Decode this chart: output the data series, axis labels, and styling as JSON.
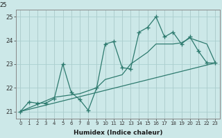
{
  "title": "25",
  "xlabel": "Humidex (Indice chaleur)",
  "background_color": "#cce8e8",
  "grid_color": "#aacfcf",
  "line_color": "#2d7a6e",
  "xlim": [
    -0.5,
    23.5
  ],
  "ylim": [
    20.7,
    25.3
  ],
  "yticks": [
    21,
    22,
    23,
    24,
    25
  ],
  "xticks": [
    0,
    1,
    2,
    3,
    4,
    5,
    6,
    7,
    8,
    9,
    10,
    11,
    12,
    13,
    14,
    15,
    16,
    17,
    18,
    19,
    20,
    21,
    22,
    23
  ],
  "curve1_x": [
    0,
    1,
    2,
    3,
    4,
    5,
    6,
    7,
    8,
    9,
    10,
    11,
    12,
    13,
    14,
    15,
    16,
    17,
    18,
    19,
    20,
    21,
    22,
    23
  ],
  "curve1_y": [
    21.0,
    21.4,
    21.35,
    21.35,
    21.55,
    23.0,
    21.8,
    21.5,
    21.05,
    22.0,
    23.85,
    23.95,
    22.85,
    22.8,
    24.35,
    24.55,
    25.0,
    24.15,
    24.35,
    23.85,
    24.15,
    23.55,
    23.05,
    23.05
  ],
  "curve2_x": [
    0,
    23
  ],
  "curve2_y": [
    21.0,
    23.05
  ],
  "curve3_x": [
    0,
    4,
    7,
    9,
    10,
    12,
    13,
    15,
    16,
    18,
    19,
    20,
    22,
    23
  ],
  "curve3_y": [
    21.0,
    21.6,
    21.75,
    22.0,
    22.35,
    22.55,
    23.0,
    23.5,
    23.85,
    23.85,
    23.9,
    24.1,
    23.85,
    23.05
  ]
}
